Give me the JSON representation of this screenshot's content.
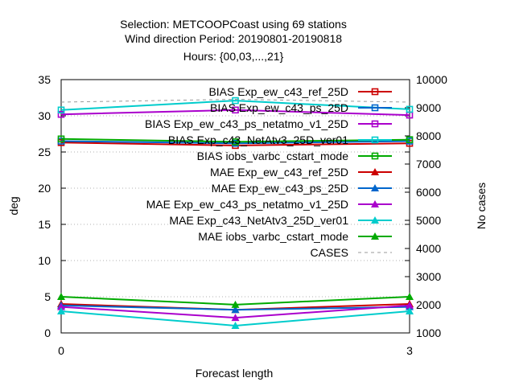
{
  "chart_data": {
    "type": "line",
    "title_lines": [
      "Selection: METCOOPCoast using    69 stations",
      "Wind direction   Period: 20190801-20190818",
      "Hours: {00,03,...,21}"
    ],
    "xlabel": "Forecast length",
    "ylabel": "deg",
    "y2label": "No cases",
    "x": [
      0,
      1.5,
      3
    ],
    "xlim": [
      0,
      3
    ],
    "ylim": [
      0,
      35
    ],
    "y2lim": [
      1000,
      10000
    ],
    "xticks": [
      0,
      3
    ],
    "yticks": [
      0,
      5,
      10,
      15,
      20,
      25,
      30,
      35
    ],
    "y2ticks": [
      1000,
      2000,
      3000,
      4000,
      5000,
      6000,
      7000,
      8000,
      9000,
      10000
    ],
    "grid": true,
    "legend_position": "top-right",
    "series": [
      {
        "name": "BIAS Exp_ew_c43_ref_25D",
        "color": "#cc0000",
        "marker": "square-open",
        "dash": false,
        "values": [
          26.3,
          25.9,
          26.2
        ]
      },
      {
        "name": "BIAS Exp_ew_c43_ps_25D",
        "color": "#0066cc",
        "marker": "square-open",
        "dash": false,
        "values": [
          26.5,
          26.2,
          26.5
        ]
      },
      {
        "name": "BIAS Exp_ew_c43_ps_netatmo_v1_25D",
        "color": "#aa00cc",
        "marker": "square-open",
        "dash": false,
        "values": [
          30.2,
          30.8,
          30.1
        ]
      },
      {
        "name": "BIAS Exp_c43_NetAtv3_25D_ver01",
        "color": "#00cccc",
        "marker": "square-open",
        "dash": false,
        "values": [
          30.8,
          32.1,
          30.9
        ]
      },
      {
        "name": "BIAS iobs_varbc_cstart_mode",
        "color": "#00aa00",
        "marker": "square-open",
        "dash": false,
        "values": [
          26.8,
          26.4,
          26.7
        ]
      },
      {
        "name": "MAE Exp_ew_c43_ref_25D",
        "color": "#cc0000",
        "marker": "triangle",
        "dash": false,
        "values": [
          4.0,
          3.2,
          4.0
        ]
      },
      {
        "name": "MAE Exp_ew_c43_ps_25D",
        "color": "#0066cc",
        "marker": "triangle",
        "dash": false,
        "values": [
          3.8,
          3.2,
          3.6
        ]
      },
      {
        "name": "MAE Exp_ew_c43_ps_netatmo_v1_25D",
        "color": "#aa00cc",
        "marker": "triangle",
        "dash": false,
        "values": [
          3.6,
          2.1,
          3.8
        ]
      },
      {
        "name": "MAE Exp_c43_NetAtv3_25D_ver01",
        "color": "#00cccc",
        "marker": "triangle",
        "dash": false,
        "values": [
          3.0,
          1.0,
          3.0
        ]
      },
      {
        "name": "MAE iobs_varbc_cstart_mode",
        "color": "#00aa00",
        "marker": "triangle",
        "dash": false,
        "values": [
          5.0,
          3.9,
          5.0
        ]
      },
      {
        "name": "CASES",
        "color": "#999999",
        "marker": "none",
        "dash": true,
        "axis": "y2",
        "values": [
          9200,
          9300,
          9200
        ]
      }
    ]
  }
}
